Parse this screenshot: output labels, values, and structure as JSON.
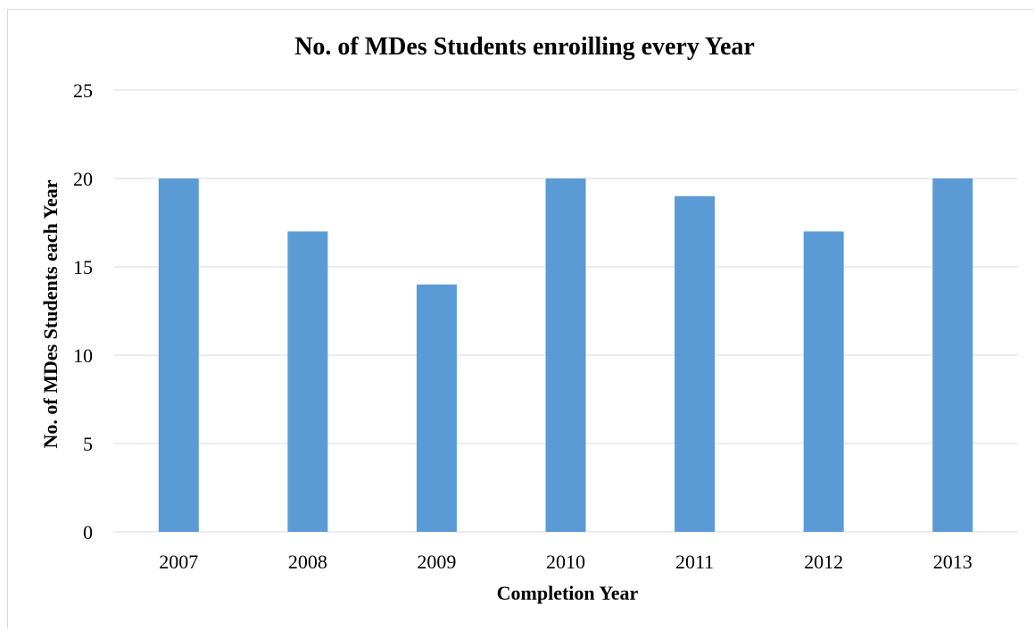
{
  "chart_data": {
    "type": "bar",
    "title": "No. of MDes  Students enroilling every Year",
    "xlabel": "Completion Year",
    "ylabel": "No. of MDes Students each Year",
    "categories": [
      "2007",
      "2008",
      "2009",
      "2010",
      "2011",
      "2012",
      "2013"
    ],
    "values": [
      20,
      17,
      14,
      20,
      19,
      17,
      20
    ],
    "ylim": [
      0,
      25
    ],
    "yticks": [
      0,
      5,
      10,
      15,
      20,
      25
    ],
    "grid": true,
    "legend": "none",
    "bar_color": "#5b9bd5",
    "grid_color": "#d9d9d9"
  }
}
